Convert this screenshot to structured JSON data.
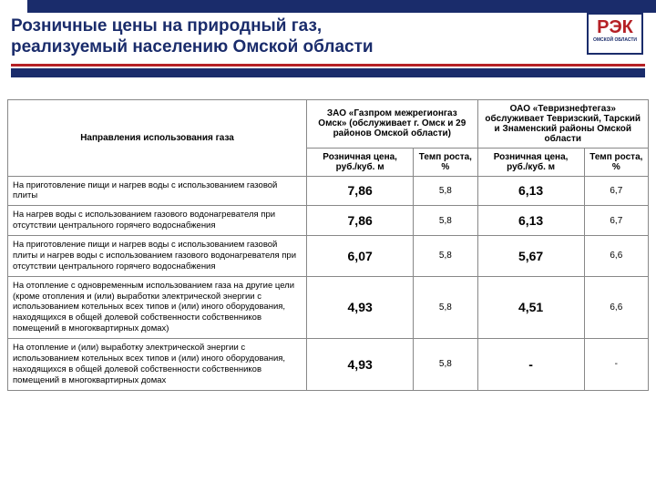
{
  "brand": {
    "logo_main": "РЭК",
    "logo_sub": "ОМСКОЙ ОБЛАСТИ"
  },
  "title_line1": "Розничные цены на природный газ,",
  "title_line2": "реализуемый населению Омской области",
  "table": {
    "header": {
      "directions": "Направления использования газа",
      "provider1": "ЗАО «Газпром межрегионгаз Омск» (обслуживает г. Омск и 29 районов Омской области)",
      "provider2": "ОАО «Тевризнефтегаз» обслуживает Тевризский, Тарский и Знаменский районы Омской области",
      "price_col": "Розничная цена, руб./куб. м",
      "rate_col": "Темп роста, %"
    },
    "rows": [
      {
        "label": "На приготовление пищи и нагрев воды с использованием газовой плиты",
        "p1": "7,86",
        "r1": "5,8",
        "p2": "6,13",
        "r2": "6,7"
      },
      {
        "label": "На нагрев воды с использованием газового водонагревателя при отсутствии центрального горячего водоснабжения",
        "p1": "7,86",
        "r1": "5,8",
        "p2": "6,13",
        "r2": "6,7"
      },
      {
        "label": "На приготовление пищи и нагрев воды с использованием газовой плиты и нагрев воды с использованием газового водонагревателя при отсутствии центрального горячего водоснабжения",
        "p1": "6,07",
        "r1": "5,8",
        "p2": "5,67",
        "r2": "6,6"
      },
      {
        "label": "На отопление с одновременным использованием газа на другие цели (кроме отопления и (или) выработки электрической энергии с использованием котельных всех типов и (или) иного оборудования, находящихся в общей долевой собственности собственников помещений в многоквартирных домах)",
        "p1": "4,93",
        "r1": "5,8",
        "p2": "4,51",
        "r2": "6,6"
      },
      {
        "label": "На отопление и (или) выработку электрической энергии с использованием котельных всех типов и (или) иного оборудования, находящихся в общей долевой собственности собственников помещений в многоквартирных домах",
        "p1": "4,93",
        "r1": "5,8",
        "p2": "-",
        "r2": "-"
      }
    ]
  },
  "colors": {
    "accent_blue": "#1a2c6b",
    "accent_red": "#b52025",
    "border": "#888888",
    "background": "#ffffff"
  }
}
